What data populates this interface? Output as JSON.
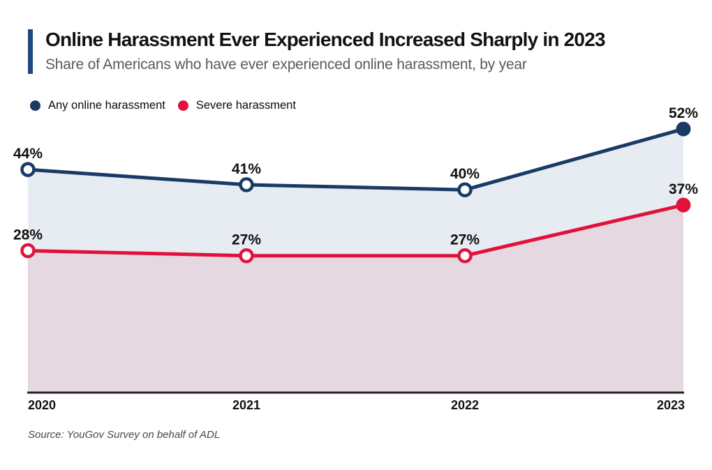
{
  "chart_data": {
    "type": "line",
    "title": "Online Harassment Ever Experienced Increased Sharply in 2023",
    "subtitle": "Share of Americans who have ever experienced online harassment, by year",
    "categories": [
      "2020",
      "2021",
      "2022",
      "2023"
    ],
    "series": [
      {
        "name": "Any online harassment",
        "values": [
          44,
          41,
          40,
          52
        ],
        "data_labels": [
          "44%",
          "41%",
          "40%",
          "52%"
        ],
        "color": "#1a3a66",
        "area_fill": "#e7ebf2"
      },
      {
        "name": "Severe harassment",
        "values": [
          28,
          27,
          27,
          37
        ],
        "data_labels": [
          "28%",
          "27%",
          "27%",
          "37%"
        ],
        "color": "#e0123c",
        "area_fill": "#e5d8e0"
      }
    ],
    "unit": "%",
    "xlabel": "",
    "ylabel": "",
    "ylim": [
      0,
      58
    ],
    "grid": false,
    "legend_position": "top-left",
    "marker_style": "hollow circles for 2020-2022, solid filled circles for 2023",
    "source": "Source: YouGov Survey on behalf of ADL",
    "accent_bar_color": "#1d4a7e",
    "axis_color": "#222222",
    "label_color": "#111111"
  }
}
